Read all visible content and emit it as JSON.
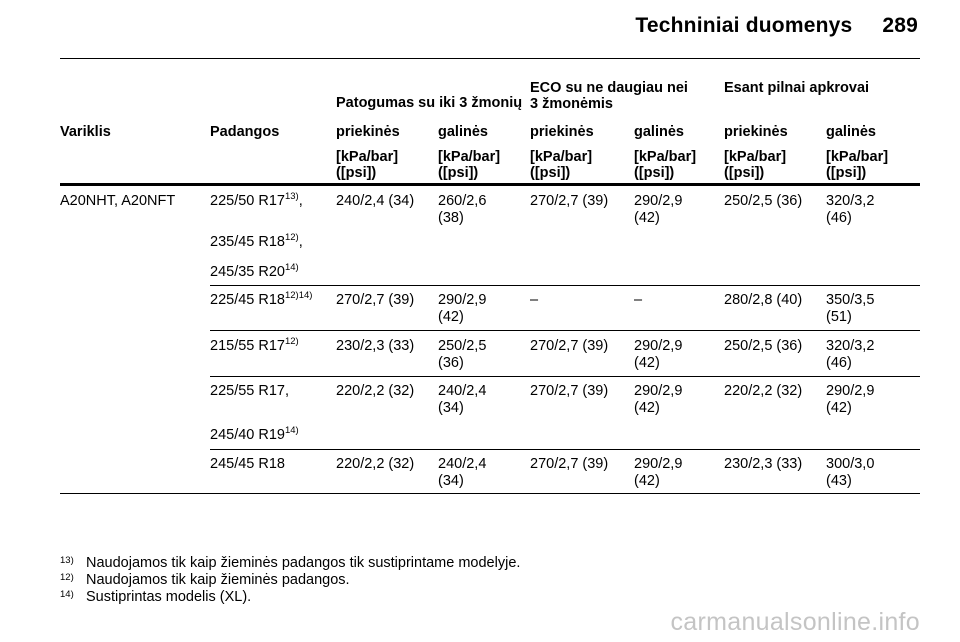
{
  "page_header": {
    "title": "Techniniai duomenys",
    "page_number": "289"
  },
  "table": {
    "group_headers": {
      "comfort": "Patogumas su iki 3 žmonių",
      "eco_line1": "ECO su ne daugiau nei",
      "eco_line2": "3 žmonėmis",
      "full_load": "Esant pilnai apkrovai"
    },
    "columns": {
      "engine": "Variklis",
      "tyres": "Padangos",
      "front": "priekinės",
      "rear": "galinės"
    },
    "unit_line1": "[kPa/bar]",
    "unit_line2": "([psi])",
    "dash": "–",
    "engine_value": "A20NHT, A20NFT",
    "rows": [
      {
        "tyres": [
          {
            "text": "225/50 R17",
            "sup": "13)",
            "suffix": ","
          },
          {
            "text": "235/45 R18",
            "sup": "12)",
            "suffix": ","
          },
          {
            "text": "245/35 R20",
            "sup": "14)",
            "suffix": ""
          }
        ],
        "comfort_front": "240/2,4 (34)",
        "comfort_rear_1": "260/2,6",
        "comfort_rear_2": "(38)",
        "eco_front": "270/2,7 (39)",
        "eco_rear_1": "290/2,9",
        "eco_rear_2": "(42)",
        "full_front": "250/2,5 (36)",
        "full_rear_1": "320/3,2",
        "full_rear_2": "(46)"
      },
      {
        "tyres": [
          {
            "text": "225/45 R18",
            "sup": "12)14)",
            "suffix": ""
          }
        ],
        "comfort_front": "270/2,7 (39)",
        "comfort_rear_1": "290/2,9",
        "comfort_rear_2": "(42)",
        "full_front": "280/2,8 (40)",
        "full_rear_1": "350/3,5",
        "full_rear_2": "(51)"
      },
      {
        "tyres": [
          {
            "text": "215/55 R17",
            "sup": "12)",
            "suffix": ""
          }
        ],
        "comfort_front": "230/2,3 (33)",
        "comfort_rear_1": "250/2,5",
        "comfort_rear_2": "(36)",
        "eco_front": "270/2,7 (39)",
        "eco_rear_1": "290/2,9",
        "eco_rear_2": "(42)",
        "full_front": "250/2,5 (36)",
        "full_rear_1": "320/3,2",
        "full_rear_2": "(46)"
      },
      {
        "tyres": [
          {
            "text": "225/55 R17",
            "sup": "",
            "suffix": ","
          },
          {
            "text": "245/40 R19",
            "sup": "14)",
            "suffix": ""
          }
        ],
        "comfort_front": "220/2,2 (32)",
        "comfort_rear_1": "240/2,4",
        "comfort_rear_2": "(34)",
        "eco_front": "270/2,7 (39)",
        "eco_rear_1": "290/2,9",
        "eco_rear_2": "(42)",
        "full_front": "220/2,2 (32)",
        "full_rear_1": "290/2,9",
        "full_rear_2": "(42)"
      },
      {
        "tyres": [
          {
            "text": "245/45 R18",
            "sup": "",
            "suffix": ""
          }
        ],
        "comfort_front": "220/2,2 (32)",
        "comfort_rear_1": "240/2,4",
        "comfort_rear_2": "(34)",
        "eco_front": "270/2,7 (39)",
        "eco_rear_1": "290/2,9",
        "eco_rear_2": "(42)",
        "full_front": "230/2,3 (33)",
        "full_rear_1": "300/3,0",
        "full_rear_2": "(43)"
      }
    ]
  },
  "footnotes": [
    {
      "mark": "13)",
      "text": "Naudojamos tik kaip žieminės padangos tik sustiprintame modelyje."
    },
    {
      "mark": "12)",
      "text": "Naudojamos tik kaip žieminės padangos."
    },
    {
      "mark": "14)",
      "text": "Sustiprintas modelis (XL)."
    }
  ],
  "watermark": "carmanualsonline.info"
}
